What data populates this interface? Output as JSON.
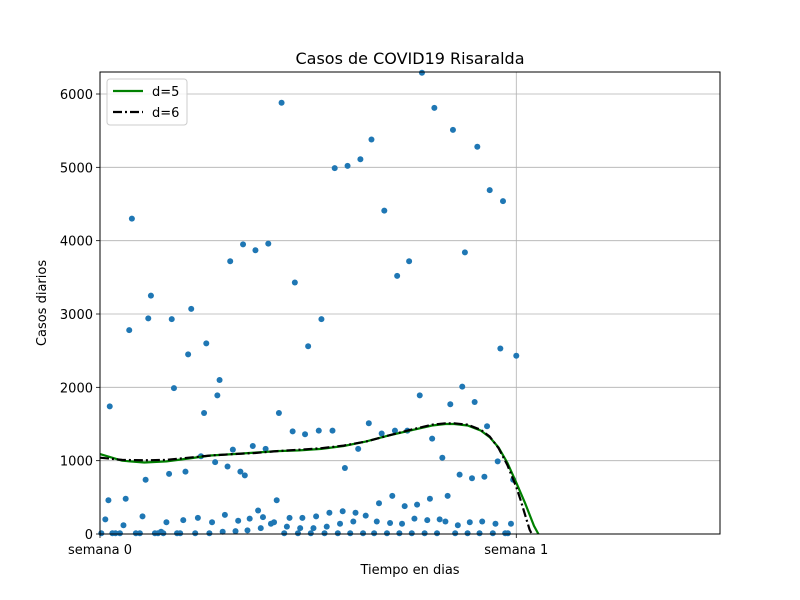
{
  "chart_data": {
    "type": "scatter",
    "title": "Casos de COVID19 Risaralda",
    "xlabel": "Tiempo en dias",
    "ylabel": "Casos diarios",
    "xlim": [
      0,
      14
    ],
    "ylim": [
      0,
      6300
    ],
    "xticks": [
      {
        "value": 0,
        "label": "semana 0"
      },
      {
        "value": 9.4,
        "label": "semana 1"
      }
    ],
    "yticks": [
      0,
      1000,
      2000,
      3000,
      4000,
      5000,
      6000
    ],
    "grid": true,
    "legend_position": "top-left",
    "points_color": "#1f77b4",
    "points": [
      [
        0.03,
        10
      ],
      [
        0.12,
        200
      ],
      [
        0.19,
        460
      ],
      [
        0.22,
        1740
      ],
      [
        0.28,
        10
      ],
      [
        0.35,
        10
      ],
      [
        0.45,
        10
      ],
      [
        0.53,
        120
      ],
      [
        0.58,
        480
      ],
      [
        0.66,
        2780
      ],
      [
        0.72,
        4300
      ],
      [
        0.81,
        10
      ],
      [
        0.9,
        10
      ],
      [
        0.96,
        240
      ],
      [
        1.03,
        740
      ],
      [
        1.09,
        2940
      ],
      [
        1.15,
        3250
      ],
      [
        1.24,
        10
      ],
      [
        1.31,
        10
      ],
      [
        1.38,
        30
      ],
      [
        1.43,
        10
      ],
      [
        1.5,
        160
      ],
      [
        1.56,
        820
      ],
      [
        1.62,
        2930
      ],
      [
        1.67,
        1990
      ],
      [
        1.74,
        10
      ],
      [
        1.81,
        10
      ],
      [
        1.88,
        190
      ],
      [
        1.93,
        850
      ],
      [
        1.99,
        2450
      ],
      [
        2.06,
        3070
      ],
      [
        2.15,
        10
      ],
      [
        2.21,
        220
      ],
      [
        2.28,
        1060
      ],
      [
        2.35,
        1650
      ],
      [
        2.4,
        2600
      ],
      [
        2.47,
        10
      ],
      [
        2.53,
        160
      ],
      [
        2.6,
        980
      ],
      [
        2.65,
        1890
      ],
      [
        2.7,
        2100
      ],
      [
        2.77,
        30
      ],
      [
        2.82,
        260
      ],
      [
        2.88,
        920
      ],
      [
        2.94,
        3720
      ],
      [
        3.0,
        1150
      ],
      [
        3.06,
        40
      ],
      [
        3.12,
        180
      ],
      [
        3.17,
        850
      ],
      [
        3.23,
        3950
      ],
      [
        3.27,
        800
      ],
      [
        3.33,
        50
      ],
      [
        3.38,
        210
      ],
      [
        3.45,
        1200
      ],
      [
        3.51,
        3870
      ],
      [
        3.57,
        320
      ],
      [
        3.63,
        80
      ],
      [
        3.68,
        230
      ],
      [
        3.74,
        1160
      ],
      [
        3.8,
        3960
      ],
      [
        3.86,
        140
      ],
      [
        3.93,
        160
      ],
      [
        3.99,
        460
      ],
      [
        4.04,
        1650
      ],
      [
        4.1,
        5880
      ],
      [
        4.16,
        10
      ],
      [
        4.22,
        100
      ],
      [
        4.28,
        220
      ],
      [
        4.35,
        1400
      ],
      [
        4.4,
        3430
      ],
      [
        4.47,
        10
      ],
      [
        4.52,
        80
      ],
      [
        4.57,
        220
      ],
      [
        4.63,
        1360
      ],
      [
        4.7,
        2560
      ],
      [
        4.76,
        10
      ],
      [
        4.82,
        80
      ],
      [
        4.88,
        240
      ],
      [
        4.94,
        1410
      ],
      [
        5.0,
        2930
      ],
      [
        5.07,
        10
      ],
      [
        5.12,
        100
      ],
      [
        5.18,
        290
      ],
      [
        5.25,
        1410
      ],
      [
        5.3,
        4990
      ],
      [
        5.37,
        10
      ],
      [
        5.42,
        140
      ],
      [
        5.48,
        310
      ],
      [
        5.53,
        900
      ],
      [
        5.59,
        5020
      ],
      [
        5.65,
        10
      ],
      [
        5.72,
        170
      ],
      [
        5.77,
        290
      ],
      [
        5.83,
        1160
      ],
      [
        5.88,
        5110
      ],
      [
        5.94,
        10
      ],
      [
        6.0,
        250
      ],
      [
        6.07,
        1510
      ],
      [
        6.13,
        5380
      ],
      [
        6.19,
        10
      ],
      [
        6.25,
        170
      ],
      [
        6.3,
        420
      ],
      [
        6.36,
        1370
      ],
      [
        6.42,
        4410
      ],
      [
        6.48,
        10
      ],
      [
        6.55,
        150
      ],
      [
        6.6,
        520
      ],
      [
        6.66,
        1410
      ],
      [
        6.71,
        3520
      ],
      [
        6.76,
        10
      ],
      [
        6.82,
        140
      ],
      [
        6.88,
        380
      ],
      [
        6.94,
        1410
      ],
      [
        6.98,
        3720
      ],
      [
        7.04,
        10
      ],
      [
        7.1,
        210
      ],
      [
        7.16,
        400
      ],
      [
        7.22,
        1890
      ],
      [
        7.27,
        6290
      ],
      [
        7.33,
        10
      ],
      [
        7.39,
        190
      ],
      [
        7.45,
        480
      ],
      [
        7.5,
        1300
      ],
      [
        7.55,
        5810
      ],
      [
        7.61,
        10
      ],
      [
        7.67,
        200
      ],
      [
        7.73,
        1040
      ],
      [
        7.8,
        170
      ],
      [
        7.85,
        520
      ],
      [
        7.91,
        1770
      ],
      [
        7.97,
        5510
      ],
      [
        8.02,
        10
      ],
      [
        8.08,
        120
      ],
      [
        8.12,
        810
      ],
      [
        8.18,
        2010
      ],
      [
        8.24,
        3840
      ],
      [
        8.3,
        10
      ],
      [
        8.35,
        160
      ],
      [
        8.4,
        760
      ],
      [
        8.46,
        1800
      ],
      [
        8.52,
        5280
      ],
      [
        8.57,
        10
      ],
      [
        8.63,
        170
      ],
      [
        8.68,
        780
      ],
      [
        8.74,
        1470
      ],
      [
        8.8,
        4690
      ],
      [
        8.87,
        10
      ],
      [
        8.93,
        140
      ],
      [
        8.98,
        990
      ],
      [
        9.04,
        2530
      ],
      [
        9.1,
        4540
      ],
      [
        9.15,
        10
      ],
      [
        9.21,
        10
      ],
      [
        9.28,
        140
      ],
      [
        9.33,
        740
      ],
      [
        9.4,
        2430
      ]
    ],
    "series": [
      {
        "name": "d=5",
        "color": "#008000",
        "style": "solid",
        "x": [
          0,
          0.5,
          1,
          1.5,
          2,
          2.5,
          3,
          3.5,
          4,
          4.5,
          5,
          5.5,
          6,
          6.5,
          7,
          7.5,
          7.8,
          8,
          8.3,
          8.6,
          8.8,
          9,
          9.2,
          9.4,
          9.6,
          9.8,
          9.9
        ],
        "y": [
          1090,
          1000,
          975,
          990,
          1030,
          1070,
          1090,
          1110,
          1130,
          1140,
          1160,
          1200,
          1260,
          1340,
          1410,
          1480,
          1500,
          1500,
          1480,
          1410,
          1320,
          1180,
          970,
          700,
          420,
          110,
          0
        ]
      },
      {
        "name": "d=6",
        "color": "#000000",
        "style": "dashdot",
        "x": [
          0,
          0.5,
          1,
          1.5,
          2,
          2.5,
          3,
          3.5,
          4,
          4.5,
          5,
          5.5,
          6,
          6.5,
          7,
          7.5,
          7.8,
          8,
          8.3,
          8.6,
          8.8,
          9,
          9.2,
          9.4,
          9.5,
          9.6,
          9.7,
          9.75
        ],
        "y": [
          1040,
          1010,
          1005,
          1010,
          1040,
          1070,
          1090,
          1105,
          1130,
          1150,
          1170,
          1205,
          1260,
          1340,
          1420,
          1490,
          1510,
          1510,
          1490,
          1420,
          1330,
          1170,
          940,
          640,
          460,
          260,
          60,
          0
        ]
      }
    ]
  }
}
